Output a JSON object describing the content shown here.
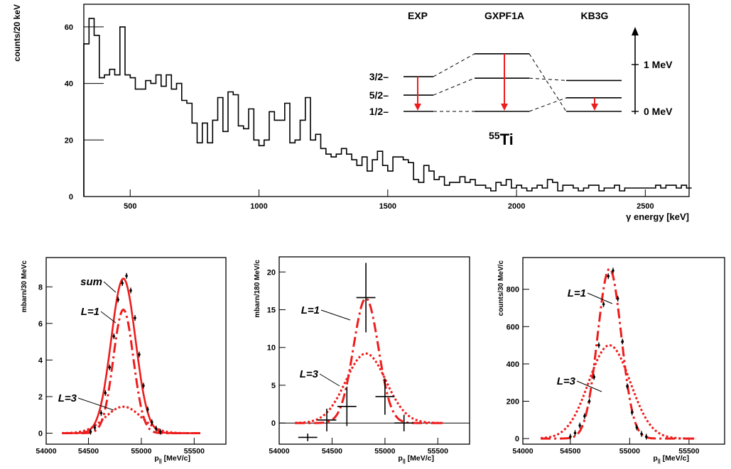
{
  "chart_data": [
    {
      "type": "line",
      "ylabel": "counts/20 keV",
      "xlabel": "γ energy [keV]",
      "xlim": [
        320,
        2670
      ],
      "ylim": [
        0,
        68
      ],
      "xticks": [
        500,
        1000,
        1500,
        2000,
        2500
      ],
      "yticks": [
        0,
        20,
        40,
        60
      ],
      "bin_start": 320,
      "bin_width": 20,
      "series": [
        {
          "values": [
            54,
            63,
            57,
            42,
            43,
            45,
            43,
            60,
            43,
            42,
            38,
            38,
            41,
            40,
            43,
            39,
            43,
            38,
            40,
            34,
            33,
            26,
            19,
            26,
            19,
            27,
            35,
            23,
            37,
            36,
            25,
            24,
            31,
            20,
            18,
            20,
            30,
            27,
            27,
            33,
            19,
            20,
            27,
            35,
            20,
            22,
            17,
            15,
            14,
            15,
            17,
            15,
            13,
            11,
            14,
            9,
            13,
            16,
            11,
            9,
            14,
            14,
            13,
            12,
            6,
            5,
            11,
            9,
            6,
            7,
            4,
            5,
            5,
            7,
            5,
            6,
            4,
            4,
            3,
            2,
            5,
            4,
            6,
            3,
            4,
            3,
            2,
            3,
            4,
            3,
            6,
            5,
            2,
            4,
            4,
            3,
            2,
            3,
            4,
            4,
            2,
            3,
            3,
            4,
            2,
            3,
            3,
            3,
            3,
            3,
            3,
            4,
            3,
            4,
            4,
            3,
            4,
            3
          ]
        }
      ],
      "inset": {
        "nucleus_mass": "55",
        "nucleus_symbol": "Ti",
        "columns": [
          "EXP",
          "GXPF1A",
          "KB3G"
        ],
        "state_labels": [
          "3/2–",
          "5/2–",
          "1/2–"
        ],
        "scale_labels": [
          "1 MeV",
          "0 MeV"
        ],
        "levels_MeV": {
          "EXP": [
            0.0,
            0.347,
            0.741
          ],
          "GXPF1A": [
            0.0,
            0.71,
            1.23
          ],
          "KB3G": [
            0.0,
            0.29,
            0.66
          ]
        }
      }
    },
    {
      "type": "line",
      "ylabel": "mbarn/30 MeVc",
      "xlabel": "p",
      "xlabel_sub": "||",
      "xlabel_unit": " [MeV/c]",
      "xlim": [
        54100,
        55800
      ],
      "ylim": [
        -0.6,
        9.6
      ],
      "xticks": [
        54000,
        54500,
        55000,
        55500
      ],
      "yticks": [
        0,
        2,
        4,
        6,
        8
      ],
      "peak": 54830,
      "annotations": [
        "sum",
        "L=1",
        "L=3"
      ],
      "series": [
        {
          "name": "sum",
          "style": "solid",
          "amplitude": 8.45,
          "sigma": 115
        },
        {
          "name": "L=1",
          "style": "dash",
          "amplitude": 6.75,
          "sigma": 95
        },
        {
          "name": "L=3",
          "style": "dot",
          "amplitude": 1.45,
          "sigma": 170
        }
      ],
      "points": [
        [
          54520,
          0.08
        ],
        [
          54560,
          0.3
        ],
        [
          54620,
          1.1
        ],
        [
          54660,
          2.2
        ],
        [
          54700,
          3.6
        ],
        [
          54740,
          5.3
        ],
        [
          54780,
          7.3
        ],
        [
          54820,
          8.2
        ],
        [
          54860,
          8.6
        ],
        [
          54900,
          7.8
        ],
        [
          54940,
          6.3
        ],
        [
          54980,
          4.3
        ],
        [
          55020,
          2.6
        ],
        [
          55060,
          1.3
        ],
        [
          55100,
          0.6
        ],
        [
          55140,
          0.25
        ],
        [
          55180,
          0.08
        ]
      ]
    },
    {
      "type": "line",
      "ylabel": "mbarn/180 MeV/c",
      "xlabel": "p",
      "xlabel_sub": "||",
      "xlabel_unit": " [MeV/c]",
      "xlim": [
        54000,
        55800
      ],
      "ylim": [
        -2.8,
        22
      ],
      "xticks": [
        54000,
        54500,
        55000,
        55500
      ],
      "yticks": [
        0,
        5,
        10,
        15,
        20
      ],
      "peak": 54820,
      "annotations": [
        "L=1",
        "L=3"
      ],
      "series": [
        {
          "name": "L=1",
          "style": "dash",
          "amplitude": 16.5,
          "sigma": 118
        },
        {
          "name": "L=3",
          "style": "dot",
          "amplitude": 9.2,
          "sigma": 190
        }
      ],
      "points": [
        [
          54270,
          -1.9,
          90,
          0.5
        ],
        [
          54450,
          0.4,
          90,
          1.5
        ],
        [
          54640,
          2.2,
          90,
          2.6
        ],
        [
          54820,
          16.6,
          90,
          4.6
        ],
        [
          55000,
          3.5,
          90,
          2.4
        ],
        [
          55180,
          0.0,
          90,
          1.1
        ]
      ]
    },
    {
      "type": "line",
      "ylabel": "counts/30 MeV/c",
      "xlabel": "p",
      "xlabel_sub": "||",
      "xlabel_unit": " [MeV/c]",
      "xlim": [
        54100,
        55800
      ],
      "ylim": [
        -30,
        970
      ],
      "xticks": [
        54000,
        54500,
        55000,
        55500
      ],
      "yticks": [
        0,
        200,
        400,
        600,
        800
      ],
      "peak": 54830,
      "annotations": [
        "L=1",
        "L=3"
      ],
      "series": [
        {
          "name": "L=1",
          "style": "dash",
          "amplitude": 910,
          "sigma": 100
        },
        {
          "name": "L=3",
          "style": "dot",
          "amplitude": 500,
          "sigma": 175
        }
      ],
      "points": [
        [
          54500,
          10
        ],
        [
          54540,
          30
        ],
        [
          54580,
          70
        ],
        [
          54620,
          120
        ],
        [
          54660,
          200
        ],
        [
          54700,
          330
        ],
        [
          54740,
          500
        ],
        [
          54780,
          720
        ],
        [
          54820,
          870
        ],
        [
          54860,
          900
        ],
        [
          54900,
          750
        ],
        [
          54940,
          520
        ],
        [
          54980,
          280
        ],
        [
          55020,
          140
        ],
        [
          55060,
          60
        ],
        [
          55100,
          25
        ],
        [
          55140,
          10
        ]
      ]
    }
  ]
}
